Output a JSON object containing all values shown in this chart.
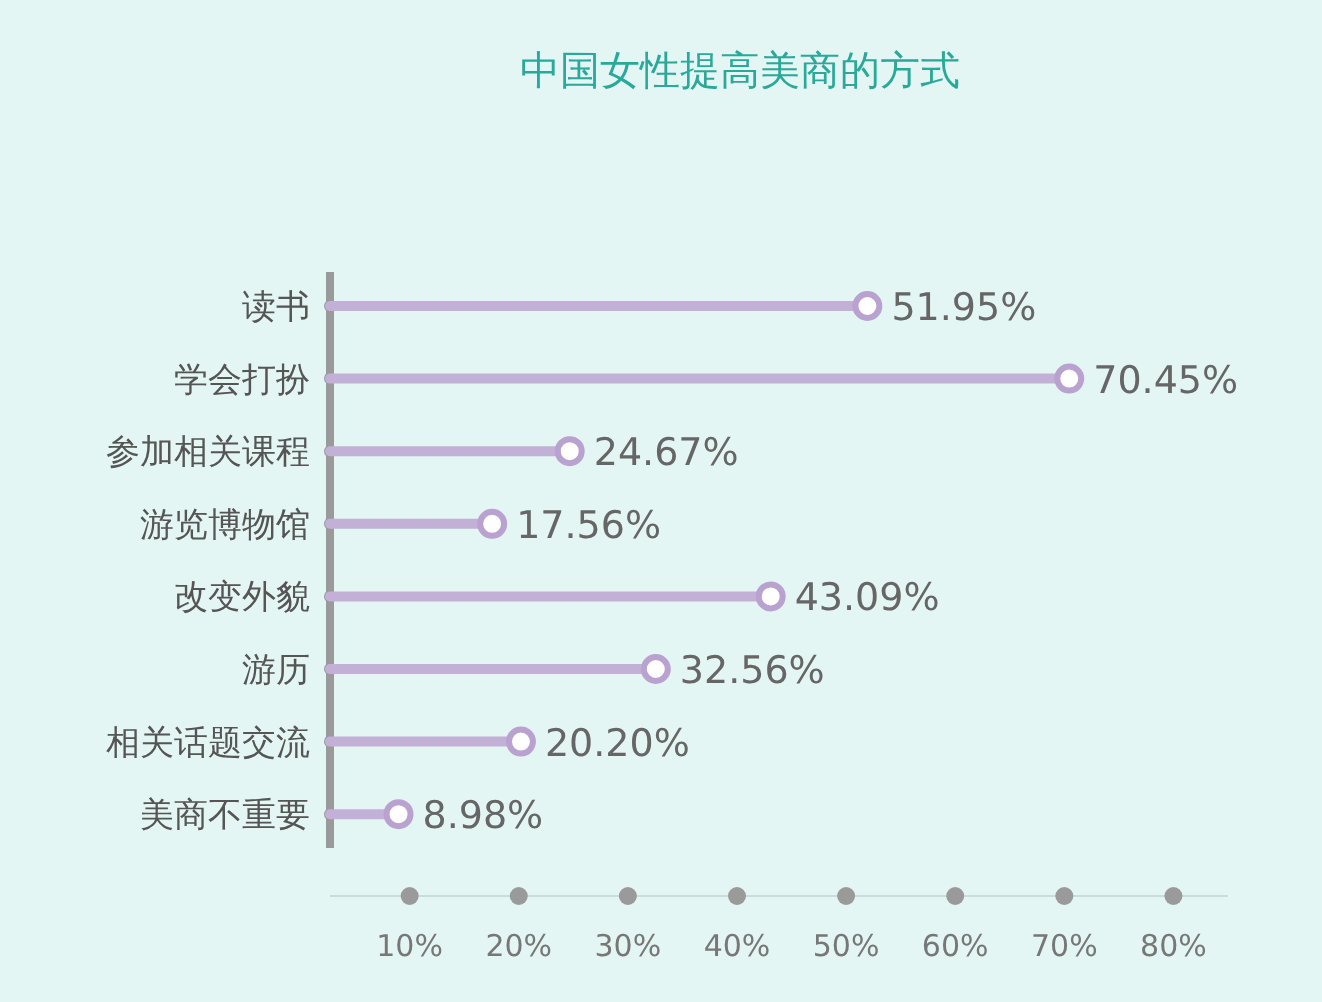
{
  "chart_data": {
    "type": "lollipop",
    "orientation": "horizontal",
    "title": "中国女性提高美商的方式",
    "categories": [
      "读书",
      "学会打扮",
      "参加相关课程",
      "游览博物馆",
      "改变外貌",
      "游历",
      "相关话题交流",
      "美商不重要"
    ],
    "values": [
      51.95,
      70.45,
      24.67,
      17.56,
      43.09,
      32.56,
      20.2,
      8.98
    ],
    "value_labels": [
      "51.95%",
      "70.45%",
      "24.67%",
      "17.56%",
      "43.09%",
      "32.56%",
      "20.20%",
      "8.98%"
    ],
    "color": "#c3b0d6",
    "marker": "circle",
    "xlim": [
      2.7,
      85
    ],
    "xticks": [
      {
        "value": 10,
        "label": "10%"
      },
      {
        "value": 20,
        "label": "20%"
      },
      {
        "value": 30,
        "label": "30%"
      },
      {
        "value": 40,
        "label": "40%"
      },
      {
        "value": 50,
        "label": "50%"
      },
      {
        "value": 60,
        "label": "60%"
      },
      {
        "value": 70,
        "label": "70%"
      },
      {
        "value": 80,
        "label": "80%"
      }
    ]
  }
}
